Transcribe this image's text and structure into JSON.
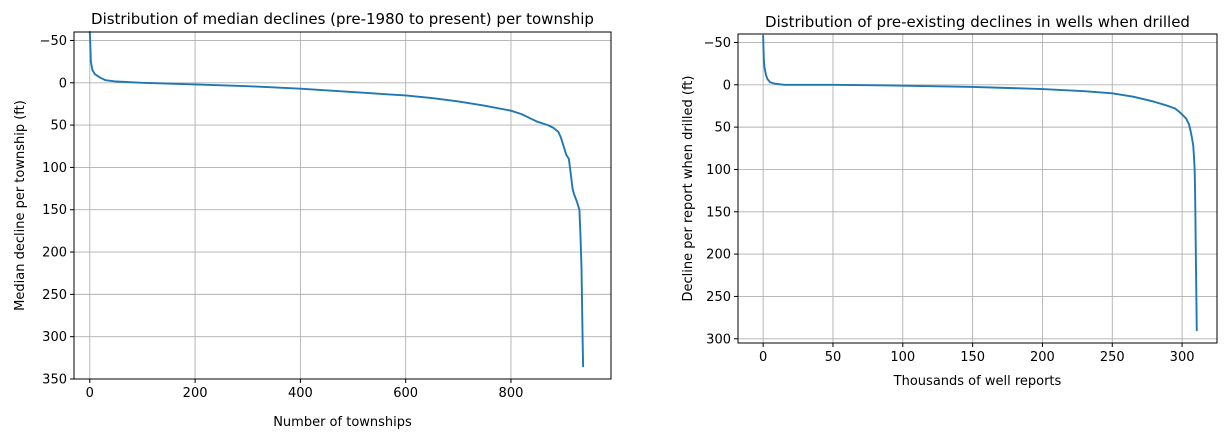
{
  "chart_data": [
    {
      "type": "line",
      "title": "Distribution of median declines (pre-1980 to present) per township",
      "xlabel": "Number of townships",
      "ylabel": "Median decline per township (ft)",
      "xlim": [
        -30,
        990
      ],
      "ylim": [
        350,
        -60
      ],
      "y_inverted": true,
      "xticks": [
        0,
        200,
        400,
        600,
        800
      ],
      "yticks": [
        -50,
        0,
        50,
        100,
        150,
        200,
        250,
        300,
        350
      ],
      "grid": true,
      "color": "#1f77b4",
      "series": [
        {
          "x": [
            0,
            1,
            2,
            5,
            10,
            20,
            30,
            50,
            100,
            200,
            300,
            400,
            500,
            600,
            650,
            700,
            750,
            800,
            820,
            840,
            850,
            860,
            870,
            880,
            890,
            895,
            900,
            905,
            908,
            910,
            912,
            914,
            917,
            920,
            925,
            930,
            932,
            934,
            935,
            936,
            937
          ],
          "y": [
            -60,
            -45,
            -25,
            -15,
            -10,
            -6,
            -3,
            -1.5,
            0,
            2,
            4,
            7,
            11,
            15,
            18,
            22,
            27,
            33,
            37,
            43,
            46,
            48,
            50,
            53,
            58,
            65,
            75,
            85,
            88,
            90,
            100,
            110,
            125,
            132,
            140,
            150,
            180,
            220,
            260,
            300,
            335
          ]
        }
      ]
    },
    {
      "type": "line",
      "title": "Distribution of pre-existing declines in wells when drilled",
      "xlabel": "Thousands of well reports",
      "ylabel": "Decline per report when drilled (ft)",
      "xlim": [
        -18,
        325
      ],
      "ylim": [
        305,
        -60
      ],
      "y_inverted": true,
      "xticks": [
        0,
        50,
        100,
        150,
        200,
        250,
        300
      ],
      "yticks": [
        -50,
        0,
        50,
        100,
        150,
        200,
        250,
        300
      ],
      "grid": true,
      "color": "#1f77b4",
      "series": [
        {
          "x": [
            0,
            0.2,
            0.5,
            1,
            2,
            3,
            5,
            8,
            15,
            50,
            100,
            150,
            200,
            230,
            250,
            265,
            280,
            290,
            295,
            298,
            300,
            303,
            305,
            306,
            307,
            308,
            308.5,
            309,
            309.3,
            309.5,
            309.7,
            310,
            310.3,
            310.5
          ],
          "y": [
            -58,
            -45,
            -30,
            -20,
            -12,
            -7,
            -3,
            -1.5,
            0,
            0,
            1,
            2.5,
            5,
            7.5,
            10,
            14,
            20,
            25,
            28,
            32,
            35,
            40,
            47,
            54,
            62,
            72,
            85,
            100,
            125,
            150,
            180,
            220,
            260,
            290
          ]
        }
      ]
    }
  ]
}
